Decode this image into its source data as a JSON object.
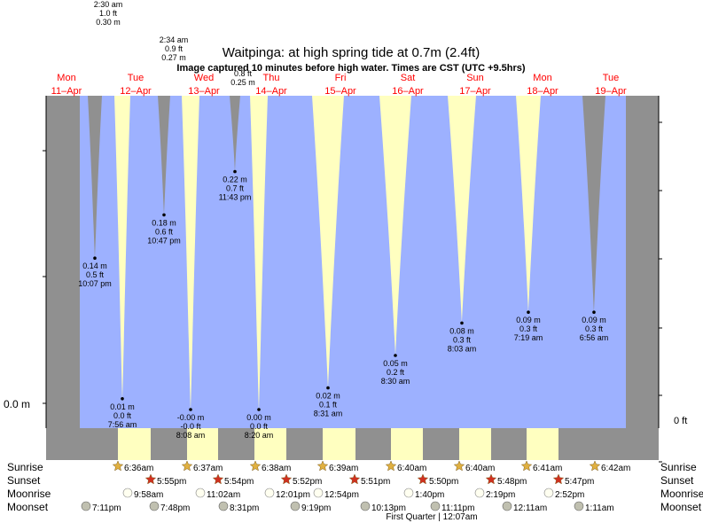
{
  "title": "Waitpinga: at high  spring tide at 0.7m (2.4ft)",
  "subtitle": "Image captured 10 minutes before high water. Times are CST (UTC +9.5hrs)",
  "colors": {
    "water": "#9db1ff",
    "night": "#909090",
    "day": "#ffffc0",
    "date_label": "#ff0000",
    "sunrise_star": "#e0b040",
    "sunset_star": "#d03020",
    "moon": "#fffff0",
    "moonset": "#c0c0b0"
  },
  "axis": {
    "left_tick_label": "0.0 m",
    "right_tick_label": "0 ft"
  },
  "days": [
    {
      "dow": "Mon",
      "date": "11–Apr"
    },
    {
      "dow": "Tue",
      "date": "12–Apr"
    },
    {
      "dow": "Wed",
      "date": "13–Apr"
    },
    {
      "dow": "Thu",
      "date": "14–Apr"
    },
    {
      "dow": "Fri",
      "date": "15–Apr"
    },
    {
      "dow": "Sat",
      "date": "16–Apr"
    },
    {
      "dow": "Sun",
      "date": "17–Apr"
    },
    {
      "dow": "Mon",
      "date": "18–Apr"
    },
    {
      "dow": "Tue",
      "date": "19–Apr"
    }
  ],
  "row_labels": {
    "sunrise": "Sunrise",
    "sunset": "Sunset",
    "moonrise": "Moonrise",
    "moonset": "Moonset"
  },
  "sunrise": [
    "6:36am",
    "6:37am",
    "6:38am",
    "6:39am",
    "6:40am",
    "6:40am",
    "6:41am",
    "6:42am"
  ],
  "sunset": [
    "5:55pm",
    "5:54pm",
    "5:52pm",
    "5:51pm",
    "5:50pm",
    "5:48pm",
    "5:47pm"
  ],
  "moonrise": [
    "9:58am",
    "11:02am",
    "12:01pm",
    "12:54pm",
    "1:40pm",
    "2:19pm",
    "2:52pm"
  ],
  "moonset": [
    "7:11pm",
    "7:48pm",
    "8:31pm",
    "9:19pm",
    "10:13pm",
    "11:11pm",
    "12:11am",
    "1:11am"
  ],
  "moon_phase_note": "First Quarter | 12:07am",
  "chart_data": {
    "type": "area",
    "title": "Waitpinga: at high  spring tide at 0.7m (2.4ft)",
    "y_unit": "m",
    "extremes": [
      {
        "m": "0.30 m",
        "ft": "1.0 ft",
        "time": "2:30 am",
        "value": 0.3
      },
      {
        "m": "0.14 m",
        "ft": "0.5 ft",
        "time": "10:07 pm",
        "value": 0.14
      },
      {
        "m": "0.01 m",
        "ft": "0.0 ft",
        "time": "7:56 am",
        "value": 0.01
      },
      {
        "m": "0.27 m",
        "ft": "0.9 ft",
        "time": "2:34 am",
        "value": 0.27
      },
      {
        "m": "0.18 m",
        "ft": "0.6 ft",
        "time": "10:47 pm",
        "value": 0.18
      },
      {
        "m": "-0.00 m",
        "ft": "-0.0 ft",
        "time": "8:08 am",
        "value": 0.0
      },
      {
        "m": "0.25 m",
        "ft": "0.8 ft",
        "time": "",
        "value": 0.25
      },
      {
        "m": "0.22 m",
        "ft": "0.7 ft",
        "time": "11:43 pm",
        "value": 0.22
      },
      {
        "m": "0.00 m",
        "ft": "0.0 ft",
        "time": "8:20 am",
        "value": 0.0
      },
      {
        "m": "0.02 m",
        "ft": "0.1 ft",
        "time": "8:31 am",
        "value": 0.02
      },
      {
        "m": "0.05 m",
        "ft": "0.2 ft",
        "time": "8:30 am",
        "value": 0.05
      },
      {
        "m": "0.08 m",
        "ft": "0.3 ft",
        "time": "8:03 am",
        "value": 0.08
      },
      {
        "m": "0.09 m",
        "ft": "0.3 ft",
        "time": "7:19 am",
        "value": 0.09
      },
      {
        "m": "0.09 m",
        "ft": "0.3 ft",
        "time": "6:56 am",
        "value": 0.09
      }
    ]
  }
}
